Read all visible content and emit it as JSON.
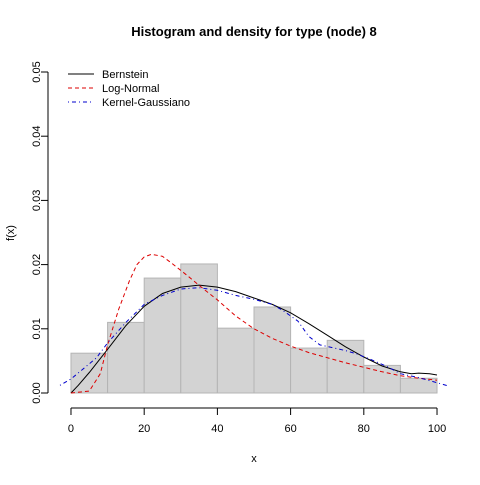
{
  "chart_data": {
    "type": "histogram",
    "title": "Histogram and density for type (node) 8",
    "xlabel": "x",
    "ylabel": "f(x)",
    "xlim": [
      -3,
      103
    ],
    "ylim": [
      0,
      0.05
    ],
    "x_ticks": [
      0,
      20,
      40,
      60,
      80,
      100
    ],
    "y_ticks": [
      0.0,
      0.01,
      0.02,
      0.03,
      0.04,
      0.05
    ],
    "y_tick_labels": [
      "0.00",
      "0.01",
      "0.02",
      "0.03",
      "0.04",
      "0.05"
    ],
    "bins": [
      {
        "x0": 0,
        "x1": 10,
        "density": 0.0062
      },
      {
        "x0": 10,
        "x1": 20,
        "density": 0.011
      },
      {
        "x0": 20,
        "x1": 30,
        "density": 0.0179
      },
      {
        "x0": 30,
        "x1": 40,
        "density": 0.0201
      },
      {
        "x0": 40,
        "x1": 50,
        "density": 0.0101
      },
      {
        "x0": 50,
        "x1": 60,
        "density": 0.0134
      },
      {
        "x0": 60,
        "x1": 70,
        "density": 0.007
      },
      {
        "x0": 70,
        "x1": 80,
        "density": 0.0082
      },
      {
        "x0": 80,
        "x1": 90,
        "density": 0.0043
      },
      {
        "x0": 90,
        "x1": 100,
        "density": 0.0023
      }
    ],
    "bin_fill": "#d3d3d3",
    "bin_stroke": "#b4b4b4",
    "series": [
      {
        "name": "Bernstein",
        "color": "#000000",
        "dash": "solid",
        "points": [
          [
            0,
            0.0
          ],
          [
            2,
            0.0012
          ],
          [
            5,
            0.0032
          ],
          [
            10,
            0.0068
          ],
          [
            15,
            0.0105
          ],
          [
            20,
            0.0135
          ],
          [
            25,
            0.0155
          ],
          [
            30,
            0.0165
          ],
          [
            35,
            0.0168
          ],
          [
            40,
            0.0165
          ],
          [
            45,
            0.0158
          ],
          [
            50,
            0.0148
          ],
          [
            55,
            0.0138
          ],
          [
            60,
            0.0125
          ],
          [
            65,
            0.0108
          ],
          [
            70,
            0.009
          ],
          [
            75,
            0.0072
          ],
          [
            80,
            0.0056
          ],
          [
            85,
            0.0042
          ],
          [
            90,
            0.0033
          ],
          [
            93,
            0.003
          ],
          [
            95,
            0.0031
          ],
          [
            98,
            0.003
          ],
          [
            100,
            0.0028
          ]
        ]
      },
      {
        "name": "Log-Normal",
        "color": "#dd0000",
        "dash": "dashed",
        "points": [
          [
            0,
            0.0
          ],
          [
            5,
            0.0003
          ],
          [
            8,
            0.003
          ],
          [
            10,
            0.0075
          ],
          [
            13,
            0.013
          ],
          [
            16,
            0.0175
          ],
          [
            18,
            0.02
          ],
          [
            20,
            0.0212
          ],
          [
            22,
            0.0216
          ],
          [
            25,
            0.0213
          ],
          [
            28,
            0.02
          ],
          [
            32,
            0.0182
          ],
          [
            36,
            0.0163
          ],
          [
            40,
            0.0145
          ],
          [
            45,
            0.012
          ],
          [
            50,
            0.01
          ],
          [
            55,
            0.0085
          ],
          [
            60,
            0.0073
          ],
          [
            65,
            0.0063
          ],
          [
            70,
            0.0055
          ],
          [
            75,
            0.0047
          ],
          [
            80,
            0.004
          ],
          [
            85,
            0.0033
          ],
          [
            90,
            0.0027
          ],
          [
            95,
            0.0023
          ],
          [
            100,
            0.002
          ]
        ]
      },
      {
        "name": "Kernel-Gaussiano",
        "color": "#0000cc",
        "dash": "dashdot",
        "points": [
          [
            -3,
            0.0012
          ],
          [
            0,
            0.0022
          ],
          [
            3,
            0.0036
          ],
          [
            7,
            0.0055
          ],
          [
            10,
            0.0078
          ],
          [
            15,
            0.011
          ],
          [
            20,
            0.0138
          ],
          [
            25,
            0.0152
          ],
          [
            30,
            0.0162
          ],
          [
            35,
            0.0164
          ],
          [
            40,
            0.016
          ],
          [
            45,
            0.0152
          ],
          [
            50,
            0.0146
          ],
          [
            55,
            0.0138
          ],
          [
            58,
            0.0128
          ],
          [
            62,
            0.0112
          ],
          [
            65,
            0.0088
          ],
          [
            68,
            0.0075
          ],
          [
            72,
            0.007
          ],
          [
            75,
            0.0066
          ],
          [
            78,
            0.0061
          ],
          [
            82,
            0.0052
          ],
          [
            86,
            0.0042
          ],
          [
            90,
            0.003
          ],
          [
            95,
            0.0024
          ],
          [
            100,
            0.0016
          ],
          [
            103,
            0.0011
          ]
        ]
      }
    ],
    "legend": {
      "position": "top-left",
      "entries": [
        "Bernstein",
        "Log-Normal",
        "Kernel-Gaussiano"
      ]
    }
  }
}
